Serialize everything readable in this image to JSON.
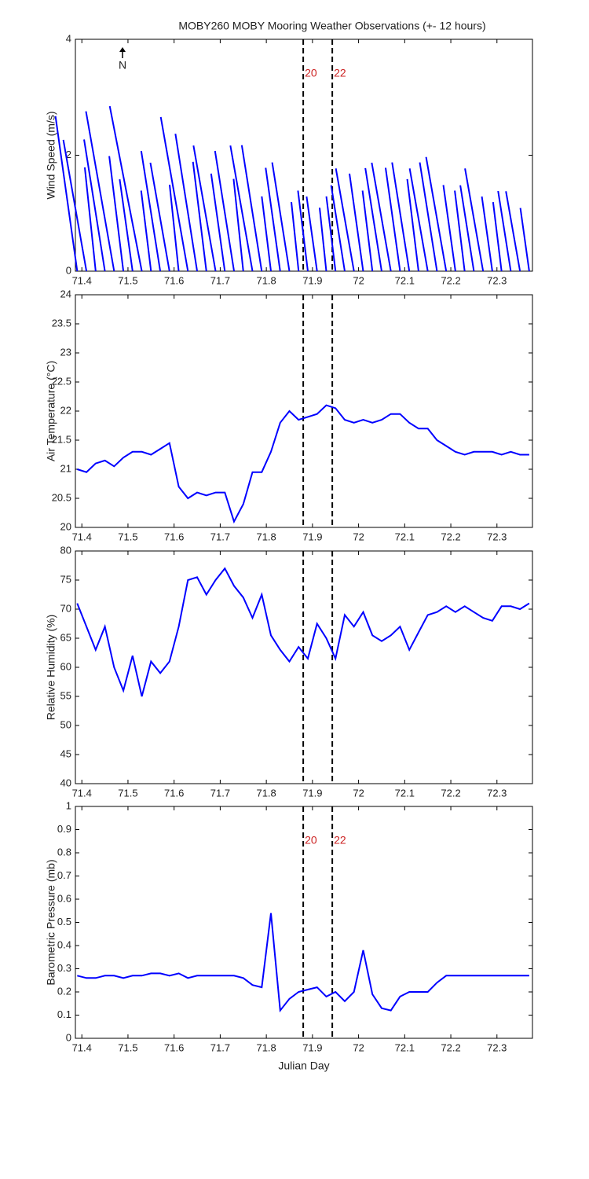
{
  "chart_data": [
    {
      "type": "stick",
      "title": "MOBY260 MOBY Mooring Weather Observations (+- 12 hours)",
      "ylabel": "Wind Speed (m/s)",
      "color": "#0000ff",
      "annotations": [
        "N"
      ],
      "x": [
        71.39,
        71.41,
        71.43,
        71.45,
        71.47,
        71.49,
        71.51,
        71.53,
        71.55,
        71.57,
        71.59,
        71.61,
        71.63,
        71.65,
        71.67,
        71.69,
        71.71,
        71.73,
        71.75,
        71.77,
        71.79,
        71.81,
        71.83,
        71.85,
        71.87,
        71.89,
        71.91,
        71.93,
        71.95,
        71.97,
        71.99,
        72.01,
        72.03,
        72.05,
        72.07,
        72.09,
        72.11,
        72.13,
        72.15,
        72.17,
        72.19,
        72.21,
        72.23,
        72.25,
        72.27,
        72.29,
        72.31,
        72.33,
        72.35,
        72.37
      ],
      "values": [
        2.7,
        2.3,
        1.8,
        2.3,
        2.8,
        2.0,
        1.6,
        2.9,
        1.4,
        2.1,
        1.9,
        1.5,
        2.7,
        2.4,
        1.9,
        2.2,
        1.7,
        2.1,
        1.6,
        2.2,
        2.2,
        1.3,
        1.8,
        1.9,
        1.2,
        1.4,
        1.3,
        1.1,
        1.3,
        1.5,
        1.8,
        1.7,
        1.4,
        1.8,
        1.9,
        1.8,
        1.9,
        1.6,
        1.8,
        1.9,
        2.0,
        1.5,
        1.4,
        1.5,
        1.8,
        1.3,
        1.2,
        1.4,
        1.4,
        1.1
      ],
      "directions": [
        352,
        350,
        354,
        351,
        350,
        353,
        352,
        349,
        353,
        351,
        350,
        354,
        350,
        351,
        353,
        350,
        352,
        351,
        354,
        350,
        351,
        353,
        352,
        351,
        354,
        353,
        352,
        354,
        353,
        351,
        350,
        352,
        353,
        351,
        350,
        352,
        351,
        353,
        350,
        351,
        350,
        352,
        353,
        351,
        350,
        352,
        353,
        351,
        350,
        352
      ],
      "xlim": [
        71.386,
        72.377
      ],
      "xticks": [
        71.4,
        71.5,
        71.6,
        71.7,
        71.8,
        71.9,
        72,
        72.1,
        72.2,
        72.3
      ],
      "ylim": [
        0,
        4
      ],
      "yticks": [
        0,
        2,
        4
      ],
      "vlines": [
        71.88,
        71.943
      ],
      "vline_labels": [
        "20",
        "22"
      ],
      "vline_label_color": "#cc2222"
    },
    {
      "type": "line",
      "ylabel": "Air Temperature (°C)",
      "color": "#0000ff",
      "x": [
        71.39,
        71.41,
        71.43,
        71.45,
        71.47,
        71.49,
        71.51,
        71.53,
        71.55,
        71.57,
        71.59,
        71.61,
        71.63,
        71.65,
        71.67,
        71.69,
        71.71,
        71.73,
        71.75,
        71.77,
        71.79,
        71.81,
        71.83,
        71.85,
        71.87,
        71.89,
        71.91,
        71.93,
        71.95,
        71.97,
        71.99,
        72.01,
        72.03,
        72.05,
        72.07,
        72.09,
        72.11,
        72.13,
        72.15,
        72.17,
        72.19,
        72.21,
        72.23,
        72.25,
        72.27,
        72.29,
        72.31,
        72.33,
        72.35,
        72.37
      ],
      "values": [
        21.0,
        20.95,
        21.1,
        21.15,
        21.05,
        21.2,
        21.3,
        21.3,
        21.25,
        21.35,
        21.45,
        20.7,
        20.5,
        20.6,
        20.55,
        20.6,
        20.6,
        20.1,
        20.4,
        20.95,
        20.95,
        21.3,
        21.8,
        22.0,
        21.85,
        21.9,
        21.95,
        22.1,
        22.05,
        21.85,
        21.8,
        21.85,
        21.8,
        21.85,
        21.95,
        21.95,
        21.8,
        21.7,
        21.7,
        21.5,
        21.4,
        21.3,
        21.25,
        21.3,
        21.3,
        21.3,
        21.25,
        21.3,
        21.25,
        21.25
      ],
      "xlim": [
        71.386,
        72.377
      ],
      "xticks": [
        71.4,
        71.5,
        71.6,
        71.7,
        71.8,
        71.9,
        72,
        72.1,
        72.2,
        72.3
      ],
      "ylim": [
        20,
        24
      ],
      "yticks": [
        20,
        20.5,
        21,
        21.5,
        22,
        22.5,
        23,
        23.5,
        24
      ],
      "vlines": [
        71.88,
        71.943
      ]
    },
    {
      "type": "line",
      "ylabel": "Relative Humidity (%)",
      "color": "#0000ff",
      "x": [
        71.39,
        71.41,
        71.43,
        71.45,
        71.47,
        71.49,
        71.51,
        71.53,
        71.55,
        71.57,
        71.59,
        71.61,
        71.63,
        71.65,
        71.67,
        71.69,
        71.71,
        71.73,
        71.75,
        71.77,
        71.79,
        71.81,
        71.83,
        71.85,
        71.87,
        71.89,
        71.91,
        71.93,
        71.95,
        71.97,
        71.99,
        72.01,
        72.03,
        72.05,
        72.07,
        72.09,
        72.11,
        72.13,
        72.15,
        72.17,
        72.19,
        72.21,
        72.23,
        72.25,
        72.27,
        72.29,
        72.31,
        72.33,
        72.35,
        72.37
      ],
      "values": [
        71,
        67,
        63,
        67,
        60,
        56,
        62,
        55,
        61,
        59,
        61,
        67,
        75,
        75.5,
        72.5,
        75,
        77,
        74,
        72,
        68.5,
        72.5,
        65.5,
        63,
        61,
        63.5,
        61.5,
        67.5,
        65,
        61.5,
        69,
        67,
        69.5,
        65.5,
        64.5,
        65.5,
        67,
        63,
        66,
        69,
        69.5,
        70.5,
        69.5,
        70.5,
        69.5,
        68.5,
        68,
        70.5,
        70.5,
        70,
        71
      ],
      "xlim": [
        71.386,
        72.377
      ],
      "xticks": [
        71.4,
        71.5,
        71.6,
        71.7,
        71.8,
        71.9,
        72,
        72.1,
        72.2,
        72.3
      ],
      "ylim": [
        40,
        80
      ],
      "yticks": [
        40,
        45,
        50,
        55,
        60,
        65,
        70,
        75,
        80
      ],
      "vlines": [
        71.88,
        71.943
      ]
    },
    {
      "type": "line",
      "ylabel": "Barometric Pressure (mb)",
      "xlabel": "Julian Day",
      "color": "#0000ff",
      "x": [
        71.39,
        71.41,
        71.43,
        71.45,
        71.47,
        71.49,
        71.51,
        71.53,
        71.55,
        71.57,
        71.59,
        71.61,
        71.63,
        71.65,
        71.67,
        71.69,
        71.71,
        71.73,
        71.75,
        71.77,
        71.79,
        71.81,
        71.83,
        71.85,
        71.87,
        71.89,
        71.91,
        71.93,
        71.95,
        71.97,
        71.99,
        72.01,
        72.03,
        72.05,
        72.07,
        72.09,
        72.11,
        72.13,
        72.15,
        72.17,
        72.19,
        72.21,
        72.23,
        72.25,
        72.27,
        72.29,
        72.31,
        72.33,
        72.35,
        72.37
      ],
      "values": [
        0.27,
        0.26,
        0.26,
        0.27,
        0.27,
        0.26,
        0.27,
        0.27,
        0.28,
        0.28,
        0.27,
        0.28,
        0.26,
        0.27,
        0.27,
        0.27,
        0.27,
        0.27,
        0.26,
        0.23,
        0.22,
        0.54,
        0.12,
        0.17,
        0.2,
        0.21,
        0.22,
        0.18,
        0.2,
        0.16,
        0.2,
        0.38,
        0.19,
        0.13,
        0.12,
        0.18,
        0.2,
        0.2,
        0.2,
        0.24,
        0.27,
        0.27,
        0.27,
        0.27,
        0.27,
        0.27,
        0.27,
        0.27,
        0.27,
        0.27
      ],
      "xlim": [
        71.386,
        72.377
      ],
      "xticks": [
        71.4,
        71.5,
        71.6,
        71.7,
        71.8,
        71.9,
        72,
        72.1,
        72.2,
        72.3
      ],
      "ylim": [
        0,
        1
      ],
      "yticks": [
        0,
        0.1,
        0.2,
        0.3,
        0.4,
        0.5,
        0.6,
        0.7,
        0.8,
        0.9,
        1
      ],
      "vlines": [
        71.88,
        71.943
      ],
      "vline_labels": [
        "20",
        "22"
      ],
      "vline_label_color": "#cc2222"
    }
  ]
}
